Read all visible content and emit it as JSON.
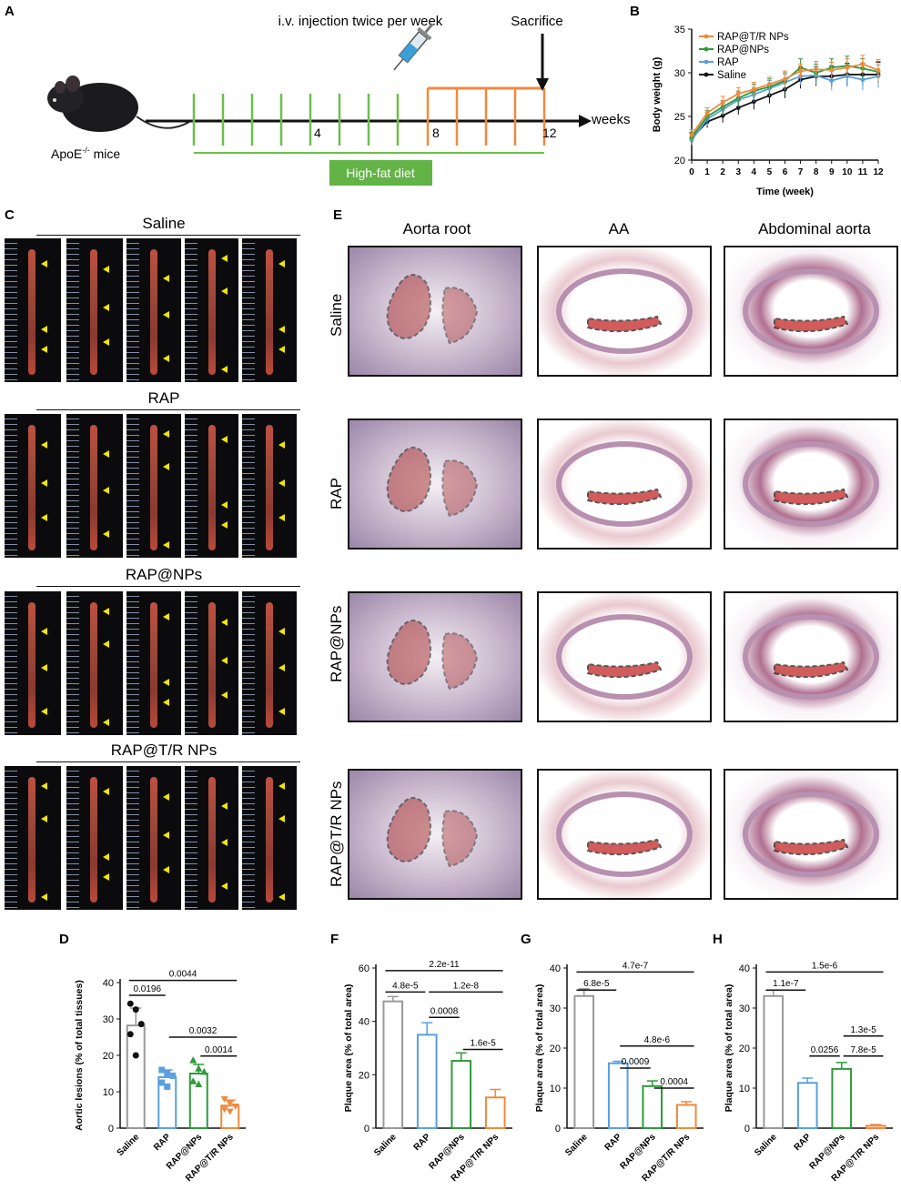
{
  "panels": {
    "A": {
      "letter": "A",
      "mouse_label": "ApoE",
      "mouse_sup": "-/-",
      "mouse_suffix": " mice",
      "injection_label": "i.v. injection twice per week",
      "sacrifice_label": "Sacrifice",
      "weeks_label": "weeks",
      "tick_4": "4",
      "tick_8": "8",
      "tick_12": "12",
      "diet_label": "High-fat diet",
      "colors": {
        "green": "#6cbf4a",
        "orange": "#f0893c",
        "diet_box": "#63b347"
      }
    },
    "B": {
      "letter": "B"
    },
    "C": {
      "letter": "C",
      "groups": [
        "Saline",
        "RAP",
        "RAP@NPs",
        "RAP@T/R NPs"
      ]
    },
    "E": {
      "letter": "E",
      "col_headers": [
        "Aorta root",
        "AA",
        "Abdominal aorta"
      ],
      "row_labels": [
        "Saline",
        "RAP",
        "RAP@NPs",
        "RAP@T/R NPs"
      ]
    },
    "D": {
      "letter": "D"
    },
    "F": {
      "letter": "F"
    },
    "G": {
      "letter": "G"
    },
    "H": {
      "letter": "H"
    }
  },
  "chart_data": [
    {
      "id": "B",
      "type": "line",
      "xlabel": "Time (week)",
      "ylabel": "Body weight (g)",
      "ylim": [
        20,
        35
      ],
      "yticks": [
        20,
        25,
        30,
        35
      ],
      "xlim": [
        0,
        12
      ],
      "x": [
        0,
        1,
        2,
        3,
        4,
        5,
        6,
        7,
        8,
        9,
        10,
        11,
        12
      ],
      "legend_position": "top-left",
      "series": [
        {
          "name": "RAP@T/R NPs",
          "color": "#f0893c",
          "values": [
            22.9,
            25.4,
            26.6,
            27.6,
            28.1,
            28.7,
            29.3,
            30.2,
            30.4,
            30.3,
            30.6,
            31.0,
            30.3
          ],
          "err": [
            0.6,
            0.6,
            0.7,
            0.7,
            0.8,
            0.8,
            0.9,
            0.8,
            0.9,
            0.9,
            1.0,
            1.0,
            1.2
          ]
        },
        {
          "name": "RAP@NPs",
          "color": "#2e9a3a",
          "values": [
            22.6,
            25.0,
            26.1,
            27.1,
            27.9,
            28.4,
            29.1,
            30.6,
            30.0,
            30.6,
            30.8,
            30.5,
            30.1
          ],
          "err": [
            0.6,
            0.7,
            0.7,
            0.8,
            0.8,
            0.9,
            0.9,
            1.0,
            1.0,
            1.0,
            1.1,
            1.1,
            1.2
          ]
        },
        {
          "name": "RAP",
          "color": "#5aa0e0",
          "values": [
            22.3,
            24.7,
            25.8,
            26.9,
            27.5,
            28.2,
            28.9,
            29.6,
            29.7,
            29.1,
            29.6,
            29.2,
            29.6
          ],
          "err": [
            0.6,
            0.7,
            0.7,
            0.8,
            0.8,
            0.9,
            0.9,
            1.0,
            1.0,
            1.1,
            1.2,
            1.2,
            1.3
          ]
        },
        {
          "name": "Saline",
          "color": "#111111",
          "values": [
            22.5,
            24.4,
            25.1,
            26.0,
            26.7,
            27.4,
            28.1,
            29.2,
            29.6,
            29.6,
            29.8,
            29.8,
            29.8
          ],
          "err": [
            0.6,
            0.7,
            0.8,
            0.8,
            0.9,
            0.9,
            1.0,
            1.0,
            1.1,
            1.2,
            1.3,
            1.3,
            1.4
          ]
        }
      ]
    },
    {
      "id": "D",
      "type": "bar",
      "ylabel": "Aortic lesions (% of total tissues)",
      "ylim": [
        0,
        40
      ],
      "yticks": [
        0,
        10,
        20,
        30,
        40
      ],
      "categories": [
        "Saline",
        "RAP",
        "RAP@NPs",
        "RAP@T/R NPs"
      ],
      "colors": [
        "#999999",
        "#5aa0e0",
        "#2e9a3a",
        "#f0893c"
      ],
      "values": [
        28.2,
        14.0,
        15.0,
        6.2
      ],
      "err": [
        4.8,
        2.0,
        2.5,
        1.5
      ],
      "points": [
        [
          34.2,
          32.6,
          28.6,
          25.8,
          20.0
        ],
        [
          16.0,
          15.0,
          14.4,
          12.5,
          11.4
        ],
        [
          18.6,
          16.3,
          15.4,
          12.8,
          12.0
        ],
        [
          8.0,
          6.8,
          6.0,
          5.2,
          4.6
        ]
      ],
      "comparisons": [
        {
          "from": 0,
          "to": 1,
          "y": 36.5,
          "label": "0.0196"
        },
        {
          "from": 0,
          "to": 3,
          "y": 40.6,
          "label": "0.0044"
        },
        {
          "from": 1,
          "to": 3,
          "y": 25.0,
          "label": "0.0032"
        },
        {
          "from": 2,
          "to": 3,
          "y": 19.8,
          "label": "0.0014"
        }
      ]
    },
    {
      "id": "F",
      "type": "bar",
      "ylabel": "Plaque area (% of total area)",
      "ylim": [
        0,
        60
      ],
      "yticks": [
        0,
        20,
        40,
        60
      ],
      "categories": [
        "Saline",
        "RAP",
        "RAP@NPs",
        "RAP@T/R NPs"
      ],
      "colors": [
        "#999999",
        "#5aa0e0",
        "#2e9a3a",
        "#f0893c"
      ],
      "values": [
        47.5,
        35.0,
        25.2,
        11.5
      ],
      "err": [
        1.8,
        4.5,
        3.0,
        3.0
      ],
      "comparisons": [
        {
          "from": 0,
          "to": 3,
          "y": 59.0,
          "label": "2.2e-11"
        },
        {
          "from": 0,
          "to": 1,
          "y": 51.0,
          "label": "4.8e-5"
        },
        {
          "from": 1,
          "to": 3,
          "y": 51.0,
          "label": "1.2e-8"
        },
        {
          "from": 1,
          "to": 2,
          "y": 41.5,
          "label": "0.0008"
        },
        {
          "from": 2,
          "to": 3,
          "y": 29.5,
          "label": "1.6e-5"
        }
      ]
    },
    {
      "id": "G",
      "type": "bar",
      "ylabel": "Plaque area (% of total area)",
      "ylim": [
        0,
        40
      ],
      "yticks": [
        0,
        10,
        20,
        30,
        40
      ],
      "categories": [
        "Saline",
        "RAP",
        "RAP@NPs",
        "RAP@T/R NPs"
      ],
      "colors": [
        "#999999",
        "#5aa0e0",
        "#2e9a3a",
        "#f0893c"
      ],
      "values": [
        33.0,
        16.2,
        10.5,
        5.8
      ],
      "err": [
        1.8,
        0.5,
        1.3,
        0.8
      ],
      "comparisons": [
        {
          "from": 0,
          "to": 3,
          "y": 39.0,
          "label": "4.7e-7"
        },
        {
          "from": 0,
          "to": 1,
          "y": 34.5,
          "label": "6.8e-5"
        },
        {
          "from": 1,
          "to": 3,
          "y": 20.5,
          "label": "4.8e-6"
        },
        {
          "from": 1,
          "to": 2,
          "y": 15.0,
          "label": "0.0009"
        },
        {
          "from": 2,
          "to": 3,
          "y": 10.0,
          "label": "0.0004"
        }
      ]
    },
    {
      "id": "H",
      "type": "bar",
      "ylabel": "Plaque area (% of total area)",
      "ylim": [
        0,
        40
      ],
      "yticks": [
        0,
        10,
        20,
        30,
        40
      ],
      "categories": [
        "Saline",
        "RAP",
        "RAP@NPs",
        "RAP@T/R NPs"
      ],
      "colors": [
        "#999999",
        "#5aa0e0",
        "#2e9a3a",
        "#f0893c"
      ],
      "values": [
        33.0,
        11.3,
        14.8,
        0.6
      ],
      "err": [
        1.5,
        1.2,
        1.6,
        0.3
      ],
      "comparisons": [
        {
          "from": 0,
          "to": 3,
          "y": 39.0,
          "label": "1.5e-6"
        },
        {
          "from": 0,
          "to": 1,
          "y": 34.5,
          "label": "1.1e-7"
        },
        {
          "from": 2,
          "to": 3,
          "y": 23.0,
          "label": "1.3e-5"
        },
        {
          "from": 1,
          "to": 2,
          "y": 18.0,
          "label": "0.0256"
        },
        {
          "from": 2,
          "to": 3,
          "y": 18.0,
          "label": "7.8e-5"
        }
      ]
    }
  ]
}
